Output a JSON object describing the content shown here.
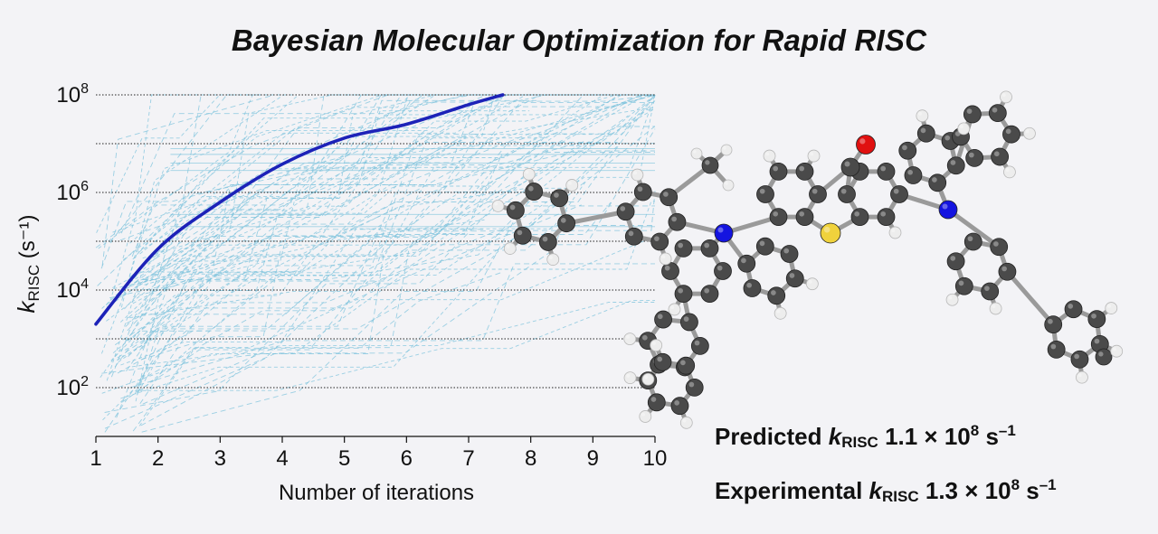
{
  "title": "Bayesian Molecular Optimization for Rapid RISC",
  "chart_data": {
    "type": "line",
    "title": "Bayesian Molecular Optimization for Rapid RISC",
    "xlabel": "Number of iterations",
    "ylabel": {
      "symbol": "k",
      "subscript": "RISC",
      "unit": "(s⁻¹)"
    },
    "xlim": [
      1,
      10
    ],
    "ylim_log10": [
      1.0,
      8.0
    ],
    "yscale": "log",
    "x_ticks": [
      1,
      2,
      3,
      4,
      5,
      6,
      7,
      8,
      9,
      10
    ],
    "y_ticks": [
      {
        "base": "10",
        "exp": "2",
        "value": 100
      },
      {
        "base": "10",
        "exp": "4",
        "value": 10000
      },
      {
        "base": "10",
        "exp": "6",
        "value": 1000000
      },
      {
        "base": "10",
        "exp": "8",
        "value": 100000000
      }
    ],
    "grid": {
      "horizontal_dotted_log10": [
        2,
        3,
        4,
        5,
        6,
        7,
        8
      ]
    },
    "series": [
      {
        "role": "best-so-far",
        "color": "#1c22b8",
        "x": [
          1,
          2,
          3,
          4,
          5,
          6,
          7,
          7.55
        ],
        "y": [
          2000,
          70000,
          630000,
          3800000,
          13000000,
          25000000,
          63000000,
          100000000
        ]
      }
    ],
    "background_trajectories": {
      "color": "#7ec3dc",
      "style": "thin dashed"
    }
  },
  "annotations": {
    "predicted": {
      "label": "Predicted",
      "symbol": "k",
      "subscript": "RISC",
      "mantissa": "1.1 × 10",
      "exponent": "8",
      "unit": " s",
      "unit_exp": "–1"
    },
    "experimental": {
      "label": "Experimental",
      "symbol": "k",
      "subscript": "RISC",
      "mantissa": "1.3 × 10",
      "exponent": "8",
      "unit": " s",
      "unit_exp": "–1"
    }
  },
  "molecule": {
    "atom_colors": {
      "carbon": "#4a4a4a",
      "hydrogen": "#ededed",
      "nitrogen": "#1414e0",
      "oxygen": "#e01010",
      "sulfur": "#f0d23c"
    }
  }
}
